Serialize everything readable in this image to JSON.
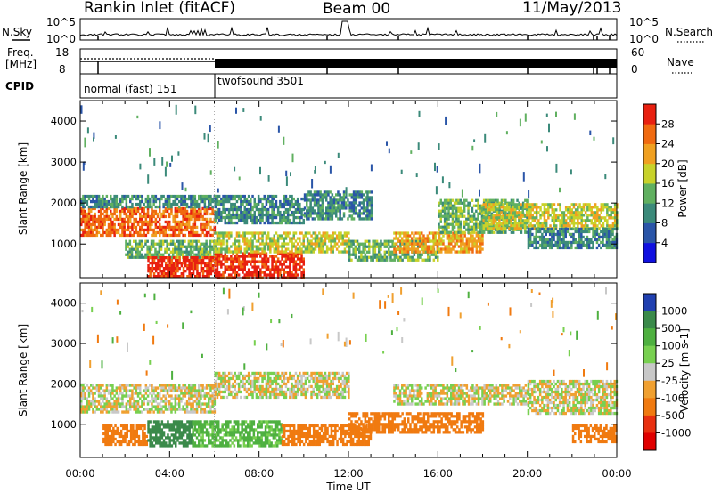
{
  "header": {
    "station": "Rankin Inlet (fitACF)",
    "beam": "Beam 00",
    "date": "11/May/2013"
  },
  "nsky_panel": {
    "left_label": "N.Sky",
    "right_label": "N.Search",
    "left_ticks": [
      "10^5",
      "10^0"
    ],
    "right_ticks": [
      "10^5",
      "10^0"
    ]
  },
  "freq_panel": {
    "left_label_1": "Freq.",
    "left_label_2": "[MHz]",
    "right_label": "Nave",
    "left_ticks": [
      "18",
      "8"
    ],
    "right_ticks": [
      "60",
      "0"
    ]
  },
  "cpid": {
    "label": "CPID",
    "modes": [
      "normal (fast) 151",
      "twofsound 3501"
    ]
  },
  "time_axis": {
    "label": "Time UT",
    "ticks": [
      "00:00",
      "04:00",
      "08:00",
      "12:00",
      "16:00",
      "20:00",
      "00:00"
    ]
  },
  "chart_data": [
    {
      "type": "heatmap",
      "panel": "power",
      "ylabel": "Slant Range [km]",
      "yticks": [
        1000,
        2000,
        3000,
        4000
      ],
      "ylim": [
        180,
        4500
      ],
      "xlim": [
        0,
        24
      ],
      "colorbar": {
        "label": "Power [dB]",
        "ticks": [
          "4",
          "8",
          "12",
          "16",
          "20",
          "24",
          "28"
        ],
        "colors": [
          "#1010e0",
          "#2a55a8",
          "#3b8a7a",
          "#60b060",
          "#c8d22a",
          "#f0a020",
          "#f06a10",
          "#e82010"
        ]
      },
      "bands": [
        {
          "t0": 0.0,
          "t1": 6.0,
          "r0": 1200,
          "r1": 1900,
          "level": 24
        },
        {
          "t0": 0.0,
          "t1": 6.0,
          "r0": 1900,
          "r1": 2200,
          "level": 8
        },
        {
          "t0": 2.0,
          "t1": 6.0,
          "r0": 700,
          "r1": 1100,
          "level": 12
        },
        {
          "t0": 3.0,
          "t1": 6.0,
          "r0": 200,
          "r1": 700,
          "level": 28
        },
        {
          "t0": 6.0,
          "t1": 10.0,
          "r0": 200,
          "r1": 800,
          "level": 28
        },
        {
          "t0": 6.0,
          "t1": 12.0,
          "r0": 800,
          "r1": 1300,
          "level": 16
        },
        {
          "t0": 6.0,
          "t1": 10.0,
          "r0": 1500,
          "r1": 2200,
          "level": 8
        },
        {
          "t0": 10.0,
          "t1": 13.0,
          "r0": 1600,
          "r1": 2300,
          "level": 8
        },
        {
          "t0": 12.0,
          "t1": 16.0,
          "r0": 600,
          "r1": 1100,
          "level": 12
        },
        {
          "t0": 14.0,
          "t1": 18.0,
          "r0": 800,
          "r1": 1300,
          "level": 20
        },
        {
          "t0": 16.0,
          "t1": 20.0,
          "r0": 1300,
          "r1": 2100,
          "level": 12
        },
        {
          "t0": 18.0,
          "t1": 24.0,
          "r0": 1400,
          "r1": 2000,
          "level": 16
        },
        {
          "t0": 20.0,
          "t1": 24.0,
          "r0": 900,
          "r1": 1400,
          "level": 8
        }
      ]
    },
    {
      "type": "heatmap",
      "panel": "velocity",
      "ylabel": "Slant Range [km]",
      "yticks": [
        1000,
        2000,
        3000,
        4000
      ],
      "ylim": [
        180,
        4500
      ],
      "xlim": [
        0,
        24
      ],
      "colorbar": {
        "label": "Velocity [m s-1]",
        "ticks": [
          "1000",
          "500",
          "100",
          "25",
          "-25",
          "-100",
          "-500",
          "-1000"
        ],
        "colors": [
          "#2040b0",
          "#3a8a4a",
          "#4eb040",
          "#78d050",
          "#c8c8c8",
          "#f0a030",
          "#f07a10",
          "#e83010",
          "#e00000"
        ]
      },
      "bands": [
        {
          "t0": 0.0,
          "t1": 6.0,
          "r0": 1300,
          "r1": 2000,
          "level": 0
        },
        {
          "t0": 1.0,
          "t1": 3.0,
          "r0": 500,
          "r1": 1000,
          "level": -300
        },
        {
          "t0": 3.0,
          "t1": 5.0,
          "r0": 500,
          "r1": 1100,
          "level": 800
        },
        {
          "t0": 5.0,
          "t1": 9.0,
          "r0": 500,
          "r1": 1100,
          "level": 150
        },
        {
          "t0": 6.0,
          "t1": 12.0,
          "r0": 1700,
          "r1": 2300,
          "level": 0
        },
        {
          "t0": 9.0,
          "t1": 13.0,
          "r0": 500,
          "r1": 1000,
          "level": -300
        },
        {
          "t0": 12.0,
          "t1": 18.0,
          "r0": 800,
          "r1": 1300,
          "level": -300
        },
        {
          "t0": 14.0,
          "t1": 20.0,
          "r0": 1500,
          "r1": 2000,
          "level": 0
        },
        {
          "t0": 20.0,
          "t1": 24.0,
          "r0": 1300,
          "r1": 2100,
          "level": 0
        },
        {
          "t0": 22.0,
          "t1": 24.0,
          "r0": 600,
          "r1": 1000,
          "level": -300
        }
      ]
    }
  ]
}
